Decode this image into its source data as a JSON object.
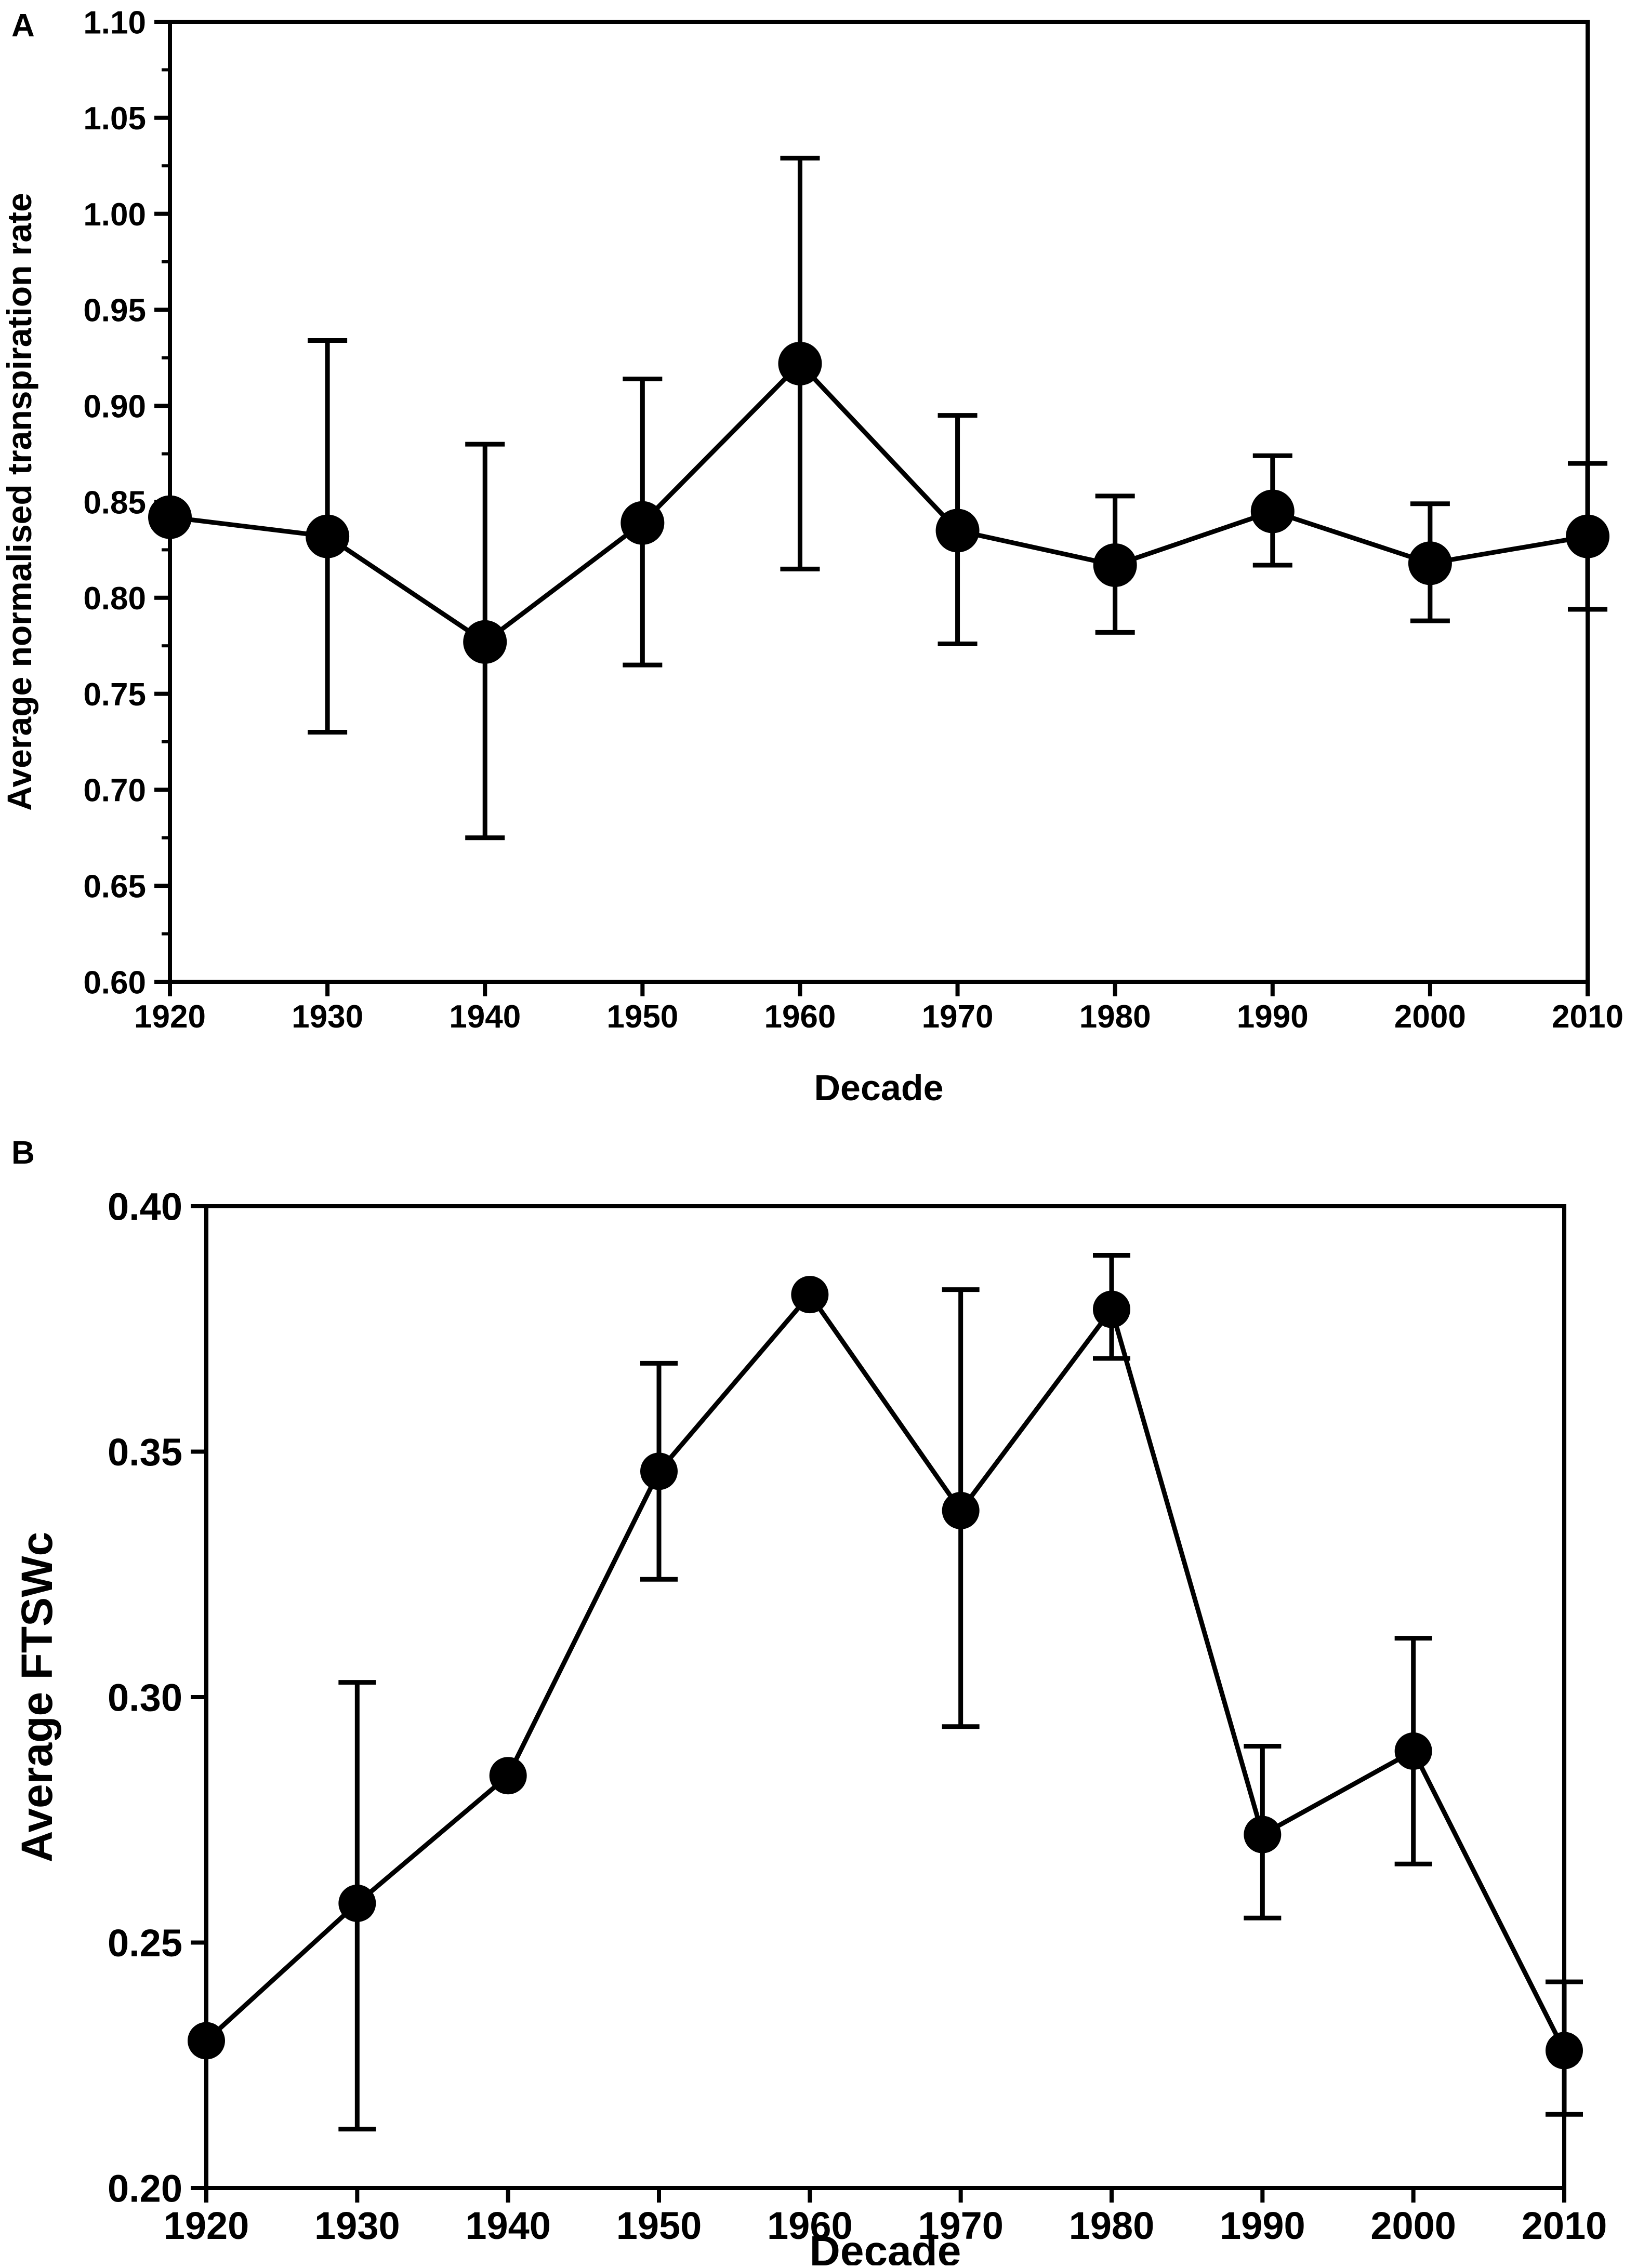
{
  "chart_data": [
    {
      "id": "A",
      "type": "line",
      "panel_label": "A",
      "xlabel": "Decade",
      "ylabel": "Average normalised transpiration rate",
      "categories": [
        "1920",
        "1930",
        "1940",
        "1950",
        "1960",
        "1970",
        "1980",
        "1990",
        "2000",
        "2010"
      ],
      "x": [
        1920,
        1930,
        1940,
        1950,
        1960,
        1970,
        1980,
        1990,
        2000,
        2010
      ],
      "values": [
        0.842,
        0.832,
        0.777,
        0.839,
        0.922,
        0.835,
        0.817,
        0.845,
        0.818,
        0.832
      ],
      "error_low": [
        null,
        0.73,
        0.675,
        0.765,
        0.815,
        0.776,
        0.782,
        0.817,
        0.788,
        0.794
      ],
      "error_high": [
        null,
        0.934,
        0.88,
        0.914,
        1.029,
        0.895,
        0.853,
        0.874,
        0.849,
        0.87
      ],
      "ylim": [
        0.6,
        1.1
      ],
      "yticks": [
        "0.60",
        "0.65",
        "0.70",
        "0.75",
        "0.80",
        "0.85",
        "0.90",
        "0.95",
        "1.00",
        "1.05",
        "1.10"
      ],
      "grid": false
    },
    {
      "id": "B",
      "type": "line",
      "panel_label": "B",
      "xlabel": "Decade",
      "ylabel": "Average FTSWc",
      "categories": [
        "1920",
        "1930",
        "1940",
        "1950",
        "1960",
        "1970",
        "1980",
        "1990",
        "2000",
        "2010"
      ],
      "x": [
        1920,
        1930,
        1940,
        1950,
        1960,
        1970,
        1980,
        1990,
        2000,
        2010
      ],
      "values": [
        0.23,
        0.258,
        0.284,
        0.346,
        0.382,
        0.338,
        0.379,
        0.272,
        0.289,
        0.228
      ],
      "error_low": [
        null,
        0.212,
        null,
        0.324,
        null,
        0.294,
        0.369,
        0.255,
        0.266,
        0.215
      ],
      "error_high": [
        null,
        0.303,
        null,
        0.368,
        null,
        0.383,
        0.39,
        0.29,
        0.312,
        0.242
      ],
      "ylim": [
        0.2,
        0.4
      ],
      "yticks": [
        "0.20",
        "0.25",
        "0.30",
        "0.35",
        "0.40"
      ],
      "grid": false
    }
  ]
}
